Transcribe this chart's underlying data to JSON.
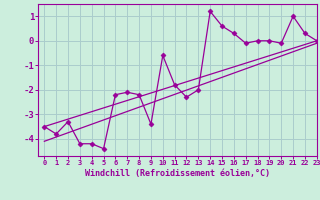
{
  "xlabel": "Windchill (Refroidissement éolien,°C)",
  "x_data": [
    0,
    1,
    2,
    3,
    4,
    5,
    6,
    7,
    8,
    9,
    10,
    11,
    12,
    13,
    14,
    15,
    16,
    17,
    18,
    19,
    20,
    21,
    22,
    23
  ],
  "y_data": [
    -3.5,
    -3.8,
    -3.3,
    -4.2,
    -4.2,
    -4.4,
    -2.2,
    -2.1,
    -2.2,
    -3.4,
    -0.6,
    -1.8,
    -2.3,
    -2.0,
    1.2,
    0.6,
    0.3,
    -0.1,
    0.0,
    0.0,
    -0.1,
    1.0,
    0.3,
    0.0
  ],
  "line1_x": [
    0,
    23
  ],
  "line1_y": [
    -3.5,
    0.0
  ],
  "line2_x": [
    0,
    23
  ],
  "line2_y": [
    -4.1,
    -0.1
  ],
  "line_color": "#990099",
  "marker_color": "#990099",
  "bg_color": "#cceedd",
  "grid_color": "#aacccc",
  "axis_color": "#990099",
  "xlim": [
    -0.5,
    23
  ],
  "ylim": [
    -4.7,
    1.5
  ],
  "yticks": [
    -4,
    -3,
    -2,
    -1,
    0,
    1
  ],
  "xticks": [
    0,
    1,
    2,
    3,
    4,
    5,
    6,
    7,
    8,
    9,
    10,
    11,
    12,
    13,
    14,
    15,
    16,
    17,
    18,
    19,
    20,
    21,
    22,
    23
  ]
}
